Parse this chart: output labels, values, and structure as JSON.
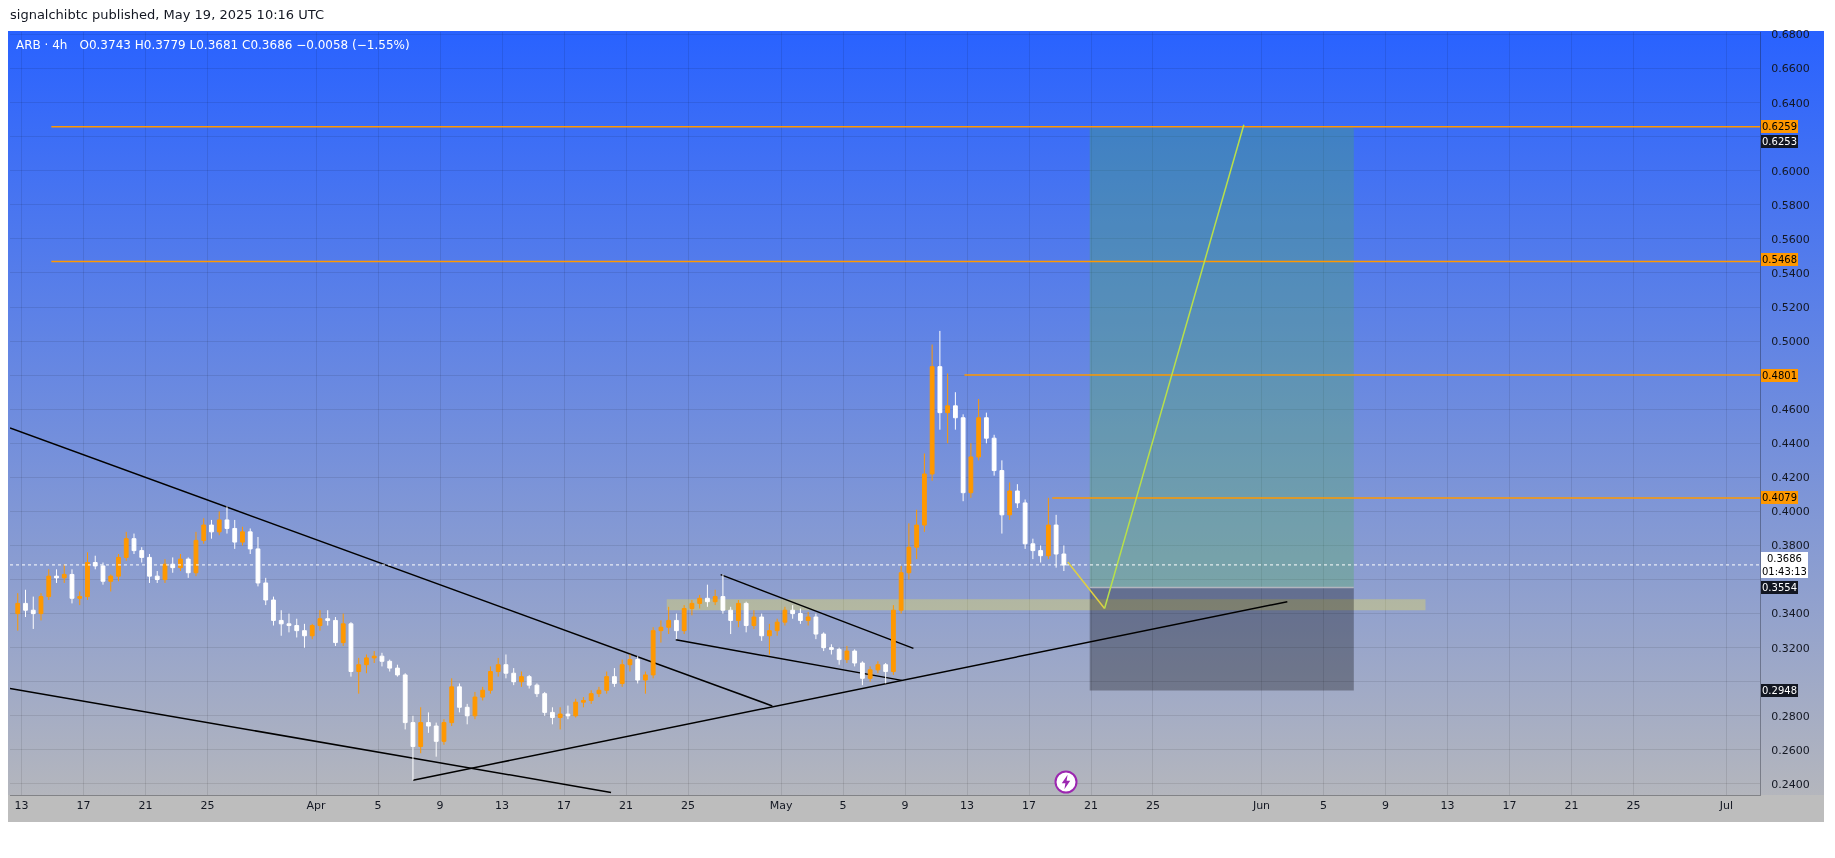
{
  "chart_data": {
    "type": "candlestick",
    "title": "ARB · 4h",
    "subtitle": "O0.3743  H0.3779  L0.3681  C0.3686  −0.0058 (−1.55%)",
    "annotations": [
      "signalchibtc published, May 19, 2025 10:16 UTC",
      {
        "text": "0.6253",
        "y": 0.6253
      },
      {
        "text": "0.3554",
        "y": 0.3554
      },
      {
        "text": "0.2948",
        "y": 0.2948
      }
    ],
    "x": [
      "2025-03-12T18:00",
      "2025-03-13T06:00",
      "2025-03-13T18:00",
      "2025-03-14T06:00",
      "2025-03-14T18:00",
      "2025-03-15T06:00",
      "2025-03-15T18:00",
      "2025-03-16T06:00",
      "2025-03-16T18:00",
      "2025-03-17T06:00",
      "2025-03-17T18:00",
      "2025-03-18T06:00",
      "2025-03-18T18:00",
      "2025-03-19T06:00",
      "2025-03-19T18:00",
      "2025-03-20T06:00",
      "2025-03-20T18:00",
      "2025-03-21T06:00",
      "2025-03-21T18:00",
      "2025-03-22T06:00",
      "2025-03-22T18:00",
      "2025-03-23T06:00",
      "2025-03-23T18:00",
      "2025-03-24T06:00",
      "2025-03-24T18:00",
      "2025-03-25T06:00",
      "2025-03-25T18:00",
      "2025-03-26T06:00",
      "2025-03-26T18:00",
      "2025-03-27T06:00",
      "2025-03-27T18:00",
      "2025-03-28T06:00",
      "2025-03-28T18:00",
      "2025-03-29T06:00",
      "2025-03-29T18:00",
      "2025-03-30T06:00",
      "2025-03-30T18:00",
      "2025-03-31T06:00",
      "2025-03-31T18:00",
      "2025-04-01T06:00",
      "2025-04-01T18:00",
      "2025-04-02T06:00",
      "2025-04-02T18:00",
      "2025-04-03T06:00",
      "2025-04-03T18:00",
      "2025-04-04T06:00",
      "2025-04-04T18:00",
      "2025-04-05T06:00",
      "2025-04-05T18:00",
      "2025-04-06T06:00",
      "2025-04-06T18:00",
      "2025-04-07T06:00",
      "2025-04-07T18:00",
      "2025-04-08T06:00",
      "2025-04-08T18:00",
      "2025-04-09T06:00",
      "2025-04-09T18:00",
      "2025-04-10T06:00",
      "2025-04-10T18:00",
      "2025-04-11T06:00",
      "2025-04-11T18:00",
      "2025-04-12T06:00",
      "2025-04-12T18:00",
      "2025-04-13T06:00",
      "2025-04-13T18:00",
      "2025-04-14T06:00",
      "2025-04-14T18:00",
      "2025-04-15T06:00",
      "2025-04-15T18:00",
      "2025-04-16T06:00",
      "2025-04-16T18:00",
      "2025-04-17T06:00",
      "2025-04-17T18:00",
      "2025-04-18T06:00",
      "2025-04-18T18:00",
      "2025-04-19T06:00",
      "2025-04-19T18:00",
      "2025-04-20T06:00",
      "2025-04-20T18:00",
      "2025-04-21T06:00",
      "2025-04-21T18:00",
      "2025-04-22T06:00",
      "2025-04-22T18:00",
      "2025-04-23T06:00",
      "2025-04-23T18:00",
      "2025-04-24T06:00",
      "2025-04-24T18:00",
      "2025-04-25T06:00",
      "2025-04-25T18:00",
      "2025-04-26T06:00",
      "2025-04-26T18:00",
      "2025-04-27T06:00",
      "2025-04-27T18:00",
      "2025-04-28T06:00",
      "2025-04-28T18:00",
      "2025-04-29T06:00",
      "2025-04-29T18:00",
      "2025-04-30T06:00",
      "2025-04-30T18:00",
      "2025-05-01T06:00",
      "2025-05-01T18:00",
      "2025-05-02T06:00",
      "2025-05-02T18:00",
      "2025-05-03T06:00",
      "2025-05-03T18:00",
      "2025-05-04T06:00",
      "2025-05-04T18:00",
      "2025-05-05T06:00",
      "2025-05-05T18:00",
      "2025-05-06T06:00",
      "2025-05-06T18:00",
      "2025-05-07T06:00",
      "2025-05-07T18:00",
      "2025-05-08T06:00",
      "2025-05-08T18:00",
      "2025-05-09T06:00",
      "2025-05-09T18:00",
      "2025-05-10T06:00",
      "2025-05-10T18:00",
      "2025-05-11T06:00",
      "2025-05-11T18:00",
      "2025-05-12T06:00",
      "2025-05-12T18:00",
      "2025-05-13T06:00",
      "2025-05-13T18:00",
      "2025-05-14T06:00",
      "2025-05-14T18:00",
      "2025-05-15T06:00",
      "2025-05-15T18:00",
      "2025-05-16T06:00",
      "2025-05-16T18:00",
      "2025-05-17T06:00",
      "2025-05-17T18:00",
      "2025-05-18T06:00",
      "2025-05-18T18:00",
      "2025-05-19T06:00"
    ],
    "ohlc": [
      [
        0.34,
        0.352,
        0.33,
        0.346
      ],
      [
        0.346,
        0.354,
        0.338,
        0.342
      ],
      [
        0.342,
        0.35,
        0.331,
        0.34
      ],
      [
        0.34,
        0.352,
        0.336,
        0.35
      ],
      [
        0.35,
        0.366,
        0.348,
        0.362
      ],
      [
        0.362,
        0.366,
        0.358,
        0.361
      ],
      [
        0.361,
        0.369,
        0.358,
        0.363
      ],
      [
        0.363,
        0.366,
        0.346,
        0.349
      ],
      [
        0.349,
        0.353,
        0.345,
        0.35
      ],
      [
        0.35,
        0.376,
        0.348,
        0.37
      ],
      [
        0.37,
        0.374,
        0.366,
        0.368
      ],
      [
        0.368,
        0.37,
        0.357,
        0.359
      ],
      [
        0.359,
        0.363,
        0.353,
        0.362
      ],
      [
        0.362,
        0.375,
        0.359,
        0.373
      ],
      [
        0.373,
        0.388,
        0.371,
        0.384
      ],
      [
        0.384,
        0.387,
        0.375,
        0.377
      ],
      [
        0.377,
        0.379,
        0.37,
        0.373
      ],
      [
        0.373,
        0.375,
        0.358,
        0.362
      ],
      [
        0.362,
        0.365,
        0.358,
        0.36
      ],
      [
        0.36,
        0.372,
        0.358,
        0.369
      ],
      [
        0.369,
        0.373,
        0.364,
        0.367
      ],
      [
        0.367,
        0.375,
        0.365,
        0.372
      ],
      [
        0.372,
        0.373,
        0.361,
        0.364
      ],
      [
        0.364,
        0.388,
        0.362,
        0.383
      ],
      [
        0.383,
        0.396,
        0.381,
        0.392
      ],
      [
        0.392,
        0.395,
        0.384,
        0.388
      ],
      [
        0.388,
        0.4,
        0.386,
        0.395
      ],
      [
        0.395,
        0.403,
        0.387,
        0.39
      ],
      [
        0.39,
        0.395,
        0.378,
        0.382
      ],
      [
        0.382,
        0.391,
        0.38,
        0.388
      ],
      [
        0.388,
        0.39,
        0.375,
        0.378
      ],
      [
        0.378,
        0.385,
        0.356,
        0.358
      ],
      [
        0.358,
        0.361,
        0.345,
        0.348
      ],
      [
        0.348,
        0.35,
        0.333,
        0.336
      ],
      [
        0.336,
        0.342,
        0.327,
        0.334
      ],
      [
        0.334,
        0.34,
        0.329,
        0.333
      ],
      [
        0.333,
        0.337,
        0.326,
        0.33
      ],
      [
        0.33,
        0.334,
        0.32,
        0.327
      ],
      [
        0.327,
        0.334,
        0.325,
        0.333
      ],
      [
        0.333,
        0.342,
        0.33,
        0.337
      ],
      [
        0.337,
        0.342,
        0.333,
        0.336
      ],
      [
        0.336,
        0.338,
        0.321,
        0.323
      ],
      [
        0.323,
        0.34,
        0.321,
        0.334
      ],
      [
        0.334,
        0.335,
        0.303,
        0.306
      ],
      [
        0.306,
        0.314,
        0.293,
        0.31
      ],
      [
        0.31,
        0.316,
        0.305,
        0.314
      ],
      [
        0.314,
        0.318,
        0.311,
        0.315
      ],
      [
        0.315,
        0.317,
        0.309,
        0.312
      ],
      [
        0.312,
        0.313,
        0.306,
        0.308
      ],
      [
        0.308,
        0.31,
        0.303,
        0.304
      ],
      [
        0.304,
        0.305,
        0.272,
        0.276
      ],
      [
        0.276,
        0.28,
        0.242,
        0.262
      ],
      [
        0.262,
        0.285,
        0.258,
        0.276
      ],
      [
        0.276,
        0.282,
        0.27,
        0.274
      ],
      [
        0.274,
        0.276,
        0.256,
        0.265
      ],
      [
        0.265,
        0.278,
        0.263,
        0.276
      ],
      [
        0.276,
        0.302,
        0.274,
        0.297
      ],
      [
        0.297,
        0.299,
        0.282,
        0.285
      ],
      [
        0.285,
        0.287,
        0.275,
        0.28
      ],
      [
        0.28,
        0.294,
        0.278,
        0.291
      ],
      [
        0.291,
        0.297,
        0.289,
        0.295
      ],
      [
        0.295,
        0.309,
        0.293,
        0.306
      ],
      [
        0.306,
        0.314,
        0.303,
        0.31
      ],
      [
        0.31,
        0.316,
        0.302,
        0.305
      ],
      [
        0.305,
        0.308,
        0.298,
        0.3
      ],
      [
        0.3,
        0.306,
        0.297,
        0.303
      ],
      [
        0.303,
        0.304,
        0.296,
        0.298
      ],
      [
        0.298,
        0.299,
        0.291,
        0.293
      ],
      [
        0.293,
        0.294,
        0.28,
        0.282
      ],
      [
        0.282,
        0.285,
        0.275,
        0.279
      ],
      [
        0.279,
        0.285,
        0.272,
        0.281
      ],
      [
        0.281,
        0.286,
        0.278,
        0.28
      ],
      [
        0.28,
        0.29,
        0.279,
        0.288
      ],
      [
        0.288,
        0.291,
        0.285,
        0.289
      ],
      [
        0.289,
        0.295,
        0.287,
        0.293
      ],
      [
        0.293,
        0.297,
        0.291,
        0.295
      ],
      [
        0.295,
        0.306,
        0.293,
        0.303
      ],
      [
        0.303,
        0.308,
        0.297,
        0.299
      ],
      [
        0.299,
        0.313,
        0.297,
        0.31
      ],
      [
        0.31,
        0.316,
        0.306,
        0.313
      ],
      [
        0.313,
        0.315,
        0.299,
        0.301
      ],
      [
        0.301,
        0.306,
        0.293,
        0.304
      ],
      [
        0.304,
        0.332,
        0.302,
        0.33
      ],
      [
        0.33,
        0.336,
        0.323,
        0.332
      ],
      [
        0.332,
        0.344,
        0.328,
        0.336
      ],
      [
        0.336,
        0.34,
        0.325,
        0.33
      ],
      [
        0.33,
        0.345,
        0.328,
        0.343
      ],
      [
        0.343,
        0.348,
        0.339,
        0.346
      ],
      [
        0.346,
        0.351,
        0.343,
        0.349
      ],
      [
        0.349,
        0.357,
        0.344,
        0.347
      ],
      [
        0.347,
        0.354,
        0.345,
        0.35
      ],
      [
        0.35,
        0.363,
        0.34,
        0.342
      ],
      [
        0.342,
        0.344,
        0.328,
        0.336
      ],
      [
        0.336,
        0.348,
        0.332,
        0.346
      ],
      [
        0.346,
        0.347,
        0.329,
        0.333
      ],
      [
        0.333,
        0.342,
        0.331,
        0.338
      ],
      [
        0.338,
        0.34,
        0.324,
        0.327
      ],
      [
        0.327,
        0.334,
        0.316,
        0.33
      ],
      [
        0.33,
        0.337,
        0.327,
        0.335
      ],
      [
        0.335,
        0.344,
        0.333,
        0.342
      ],
      [
        0.342,
        0.345,
        0.337,
        0.34
      ],
      [
        0.34,
        0.343,
        0.334,
        0.336
      ],
      [
        0.336,
        0.341,
        0.333,
        0.338
      ],
      [
        0.338,
        0.34,
        0.325,
        0.328
      ],
      [
        0.328,
        0.329,
        0.318,
        0.32
      ],
      [
        0.32,
        0.322,
        0.316,
        0.319
      ],
      [
        0.319,
        0.32,
        0.31,
        0.313
      ],
      [
        0.313,
        0.321,
        0.311,
        0.318
      ],
      [
        0.318,
        0.319,
        0.309,
        0.311
      ],
      [
        0.311,
        0.312,
        0.298,
        0.302
      ],
      [
        0.302,
        0.309,
        0.3,
        0.307
      ],
      [
        0.307,
        0.312,
        0.305,
        0.31
      ],
      [
        0.31,
        0.311,
        0.299,
        0.306
      ],
      [
        0.306,
        0.345,
        0.304,
        0.342
      ],
      [
        0.342,
        0.368,
        0.34,
        0.364
      ],
      [
        0.364,
        0.393,
        0.36,
        0.379
      ],
      [
        0.379,
        0.401,
        0.372,
        0.392
      ],
      [
        0.392,
        0.434,
        0.388,
        0.422
      ],
      [
        0.422,
        0.498,
        0.418,
        0.485
      ],
      [
        0.485,
        0.506,
        0.448,
        0.458
      ],
      [
        0.458,
        0.481,
        0.44,
        0.462
      ],
      [
        0.462,
        0.47,
        0.448,
        0.455
      ],
      [
        0.455,
        0.457,
        0.406,
        0.411
      ],
      [
        0.411,
        0.44,
        0.408,
        0.432
      ],
      [
        0.432,
        0.466,
        0.43,
        0.455
      ],
      [
        0.455,
        0.458,
        0.44,
        0.443
      ],
      [
        0.443,
        0.445,
        0.421,
        0.424
      ],
      [
        0.424,
        0.43,
        0.387,
        0.398
      ],
      [
        0.398,
        0.417,
        0.395,
        0.412
      ],
      [
        0.412,
        0.416,
        0.402,
        0.405
      ],
      [
        0.405,
        0.407,
        0.378,
        0.381
      ],
      [
        0.381,
        0.384,
        0.372,
        0.377
      ],
      [
        0.377,
        0.38,
        0.37,
        0.374
      ],
      [
        0.374,
        0.408,
        0.372,
        0.392
      ],
      [
        0.392,
        0.398,
        0.367,
        0.375
      ],
      [
        0.375,
        0.38,
        0.365,
        0.3686
      ]
    ],
    "colors": [
      "#ff9800",
      "#ffffff",
      "#ffffff",
      "#ff9800",
      "#ff9800",
      "#ffffff",
      "#ff9800",
      "#ffffff",
      "#ff9800",
      "#ff9800",
      "#ffffff",
      "#ffffff",
      "#ff9800",
      "#ff9800",
      "#ff9800",
      "#ffffff",
      "#ffffff",
      "#ffffff",
      "#ffffff",
      "#ff9800",
      "#ffffff",
      "#ff9800",
      "#ffffff",
      "#ff9800",
      "#ff9800",
      "#ffffff",
      "#ff9800",
      "#ffffff",
      "#ffffff",
      "#ff9800",
      "#ffffff",
      "#ffffff",
      "#ffffff",
      "#ffffff",
      "#ffffff",
      "#ffffff",
      "#ffffff",
      "#ffffff",
      "#ff9800",
      "#ff9800",
      "#ffffff",
      "#ffffff",
      "#ff9800",
      "#ffffff",
      "#ff9800",
      "#ff9800",
      "#ff9800",
      "#ffffff",
      "#ffffff",
      "#ffffff",
      "#ffffff",
      "#ffffff",
      "#ff9800",
      "#ffffff",
      "#ffffff",
      "#ff9800",
      "#ff9800",
      "#ffffff",
      "#ffffff",
      "#ff9800",
      "#ff9800",
      "#ff9800",
      "#ff9800",
      "#ffffff",
      "#ffffff",
      "#ff9800",
      "#ffffff",
      "#ffffff",
      "#ffffff",
      "#ffffff",
      "#ff9800",
      "#ffffff",
      "#ff9800",
      "#ff9800",
      "#ff9800",
      "#ff9800",
      "#ff9800",
      "#ffffff",
      "#ff9800",
      "#ff9800",
      "#ffffff",
      "#ff9800",
      "#ff9800",
      "#ff9800",
      "#ff9800",
      "#ffffff",
      "#ff9800",
      "#ff9800",
      "#ff9800",
      "#ffffff",
      "#ff9800",
      "#ffffff",
      "#ffffff",
      "#ff9800",
      "#ffffff",
      "#ff9800",
      "#ffffff",
      "#ff9800",
      "#ff9800",
      "#ff9800",
      "#ffffff",
      "#ffffff",
      "#ff9800",
      "#ffffff",
      "#ffffff",
      "#ffffff",
      "#ffffff",
      "#ff9800",
      "#ffffff",
      "#ffffff",
      "#ff9800",
      "#ff9800",
      "#ffffff",
      "#ff9800",
      "#ff9800",
      "#ff9800",
      "#ff9800",
      "#ff9800",
      "#ff9800",
      "#ffffff",
      "#ff9800",
      "#ffffff",
      "#ffffff",
      "#ff9800",
      "#ff9800",
      "#ffffff",
      "#ffffff",
      "#ffffff",
      "#ff9800",
      "#ffffff",
      "#ffffff",
      "#ffffff",
      "#ffffff",
      "#ff9800",
      "#ffffff",
      "#ffffff"
    ],
    "series": [
      {
        "type": "line",
        "x": [
          "2025-04-23T15:00",
          "2025-06-11T14:00"
        ],
        "values": [
          null,
          null
        ],
        "lower": [
          0.342,
          0.342
        ],
        "upper": [
          0.3485,
          0.3485
        ],
        "color": "#ffeb3b"
      },
      {
        "type": "line",
        "x": [
          "2025-05-20T22:00",
          "2025-06-06T23:00"
        ],
        "values": [
          null,
          null
        ],
        "lower": [
          0.2948,
          0.2948
        ],
        "upper": [
          0.3554,
          0.3554
        ],
        "color": "#000000"
      },
      {
        "type": "line",
        "x": [
          "2025-05-20T22:00",
          "2025-06-06T23:00"
        ],
        "values": [
          null,
          null
        ],
        "lower": [
          0.3554,
          0.3554
        ],
        "upper": [
          0.6253,
          0.6253
        ],
        "color": "#4caf50"
      },
      {
        "type": "line",
        "x": [
          "2025-05-20T22:00",
          "2025-06-06T23:00"
        ],
        "values": [
          0.3554,
          0.3554
        ],
        "color": "#b2b5be"
      },
      {
        "type": "line",
        "x": [
          "2025-03-12T06:00",
          "2025-04-30T10:30"
        ],
        "values": [
          0.449,
          0.2858
        ],
        "color": "#000000"
      },
      {
        "type": "line",
        "x": [
          "2025-03-12T06:00",
          "2025-04-20T00:45"
        ],
        "values": [
          0.2961,
          0.235
        ],
        "color": "#000000"
      },
      {
        "type": "line",
        "x": [
          "2025-04-07T06:00",
          "2025-06-02T16:00"
        ],
        "values": [
          0.2422,
          0.347
        ],
        "color": "#000000"
      },
      {
        "type": "line",
        "x": [
          "2025-04-27T02:30",
          "2025-05-09T13:00"
        ],
        "values": [
          0.3629,
          0.3196
        ],
        "color": "#000000"
      },
      {
        "type": "line",
        "x": [
          "2025-04-24T05:00",
          "2025-05-08T19:00"
        ],
        "values": [
          0.3246,
          0.3008
        ],
        "color": "#000000"
      },
      {
        "type": "line",
        "x": [
          "2025-03-14T22:00",
          "2025-07-03T04:00"
        ],
        "values": [
          0.6259,
          0.6259
        ],
        "color": "#ff9800",
        "value_labels": [
          null,
          "0.6259"
        ]
      },
      {
        "type": "line",
        "x": [
          "2025-03-14T22:00",
          "2025-07-03T04:00"
        ],
        "values": [
          0.5468,
          0.5468
        ],
        "color": "#ff9800",
        "value_labels": [
          null,
          "0.5468"
        ]
      },
      {
        "type": "line",
        "x": [
          "2025-05-12T20:00",
          "2025-07-03T04:00"
        ],
        "values": [
          0.4801,
          0.4801
        ],
        "color": "#ff9800",
        "value_labels": [
          null,
          "0.4801"
        ]
      },
      {
        "type": "line",
        "x": [
          "2025-05-18T12:00",
          "2025-07-03T04:00"
        ],
        "values": [
          0.4079,
          0.4079
        ],
        "color": "#ff9800",
        "value_labels": [
          null,
          "0.4079"
        ]
      },
      {
        "type": "line",
        "x": [
          "2025-05-19T12:00",
          "2025-05-21T21:00"
        ],
        "values": [
          0.3703,
          0.343
        ],
        "color": "#e0d040"
      },
      {
        "type": "line",
        "x": [
          "2025-05-21T21:00",
          "2025-05-30T20:40"
        ],
        "values": [
          0.343,
          0.627
        ],
        "color": "#b8e04a"
      }
    ],
    "ref_lines": [
      {
        "axis": "y",
        "value": 0.3686,
        "label": "0.3686\n01:43:13",
        "color": "#ffffff",
        "line_style": "dotted"
      }
    ],
    "xlim": [
      "2025-03-12T06:00",
      "2025-07-03T04:00"
    ],
    "ylim": [
      0.2335,
      0.6815
    ],
    "xticks": [
      {
        "value": "2025-03-13",
        "label": "13"
      },
      {
        "value": "2025-03-17",
        "label": "17"
      },
      {
        "value": "2025-03-21",
        "label": "21"
      },
      {
        "value": "2025-03-25",
        "label": "25"
      },
      {
        "value": "2025-04-01",
        "label": "Apr"
      },
      {
        "value": "2025-04-05",
        "label": "5"
      },
      {
        "value": "2025-04-09",
        "label": "9"
      },
      {
        "value": "2025-04-13",
        "label": "13"
      },
      {
        "value": "2025-04-17",
        "label": "17"
      },
      {
        "value": "2025-04-21",
        "label": "21"
      },
      {
        "value": "2025-04-25",
        "label": "25"
      },
      {
        "value": "2025-05-01",
        "label": "May"
      },
      {
        "value": "2025-05-05",
        "label": "5"
      },
      {
        "value": "2025-05-09",
        "label": "9"
      },
      {
        "value": "2025-05-13",
        "label": "13"
      },
      {
        "value": "2025-05-17",
        "label": "17"
      },
      {
        "value": "2025-05-21",
        "label": "21"
      },
      {
        "value": "2025-05-25",
        "label": "25"
      },
      {
        "value": "2025-06-01",
        "label": "Jun"
      },
      {
        "value": "2025-06-05",
        "label": "5"
      },
      {
        "value": "2025-06-09",
        "label": "9"
      },
      {
        "value": "2025-06-13",
        "label": "13"
      },
      {
        "value": "2025-06-17",
        "label": "17"
      },
      {
        "value": "2025-06-21",
        "label": "21"
      },
      {
        "value": "2025-06-25",
        "label": "25"
      },
      {
        "value": "2025-07-01",
        "label": "Jul"
      }
    ],
    "yticks": [
      {
        "value": 0.24,
        "label": "0.2400"
      },
      {
        "value": 0.26,
        "label": "0.2600"
      },
      {
        "value": 0.28,
        "label": "0.2800"
      },
      {
        "value": 0.3,
        "label": null
      },
      {
        "value": 0.32,
        "label": "0.3200"
      },
      {
        "value": 0.34,
        "label": "0.3400"
      },
      {
        "value": 0.36,
        "label": null
      },
      {
        "value": 0.38,
        "label": "0.3800"
      },
      {
        "value": 0.4,
        "label": "0.4000"
      },
      {
        "value": 0.42,
        "label": "0.4200"
      },
      {
        "value": 0.44,
        "label": "0.4400"
      },
      {
        "value": 0.46,
        "label": "0.4600"
      },
      {
        "value": 0.48,
        "label": null
      },
      {
        "value": 0.5,
        "label": "0.5000"
      },
      {
        "value": 0.52,
        "label": "0.5200"
      },
      {
        "value": 0.54,
        "label": "0.5400"
      },
      {
        "value": 0.56,
        "label": "0.5600"
      },
      {
        "value": 0.58,
        "label": "0.5800"
      },
      {
        "value": 0.6,
        "label": "0.6000"
      },
      {
        "value": 0.62,
        "label": null
      },
      {
        "value": 0.64,
        "label": "0.6400"
      },
      {
        "value": 0.66,
        "label": "0.6600"
      },
      {
        "value": 0.68,
        "label": "0.6800"
      }
    ],
    "grid": true
  }
}
